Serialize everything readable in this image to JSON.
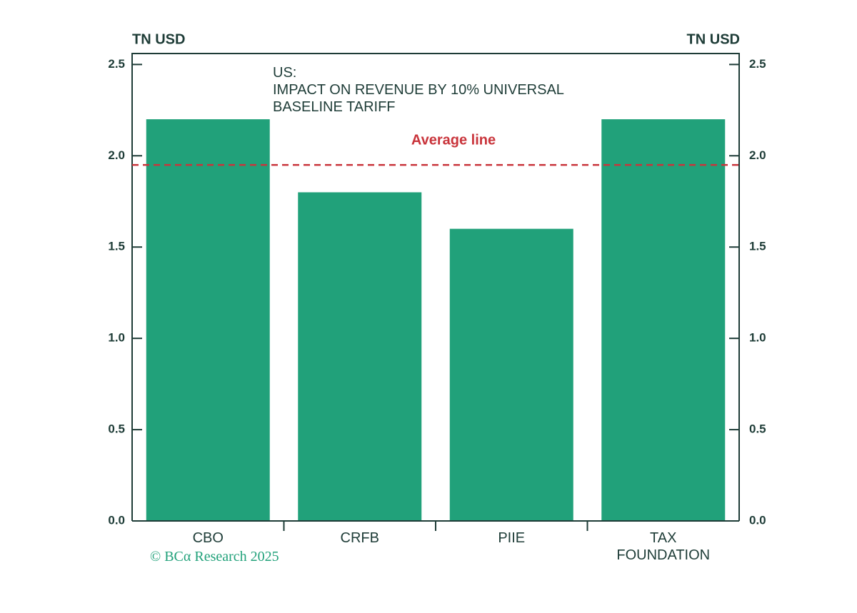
{
  "chart_data": {
    "type": "bar",
    "title": "US:",
    "subtitle": "IMPACT ON REVENUE BY 10% UNIVERSAL BASELINE TARIFF",
    "y_label": "TN USD",
    "y2_label": "TN USD",
    "categories": [
      "CBO",
      "CRFB",
      "PIIE",
      "TAX FOUNDATION"
    ],
    "values": [
      2.2,
      1.8,
      1.6,
      2.2
    ],
    "color": "#21a17a",
    "ylim": [
      0,
      2.56
    ],
    "yticks": [
      {
        "value": 0,
        "label": "0.0"
      },
      0.5,
      {
        "value": 1,
        "label": "1.0"
      },
      1.5,
      {
        "value": 2,
        "label": "2.0"
      },
      2.5
    ],
    "y2lim": [
      0,
      2.56
    ],
    "y2ticks": [
      {
        "value": 0,
        "label": "0.0"
      },
      0.5,
      {
        "value": 1,
        "label": "1.0"
      },
      1.5,
      {
        "value": 2,
        "label": "2.0"
      },
      2.5
    ],
    "average": {
      "label": "Average line",
      "value": 1.95,
      "color": "#c9343b"
    },
    "source": "© BCα Research 2025"
  }
}
